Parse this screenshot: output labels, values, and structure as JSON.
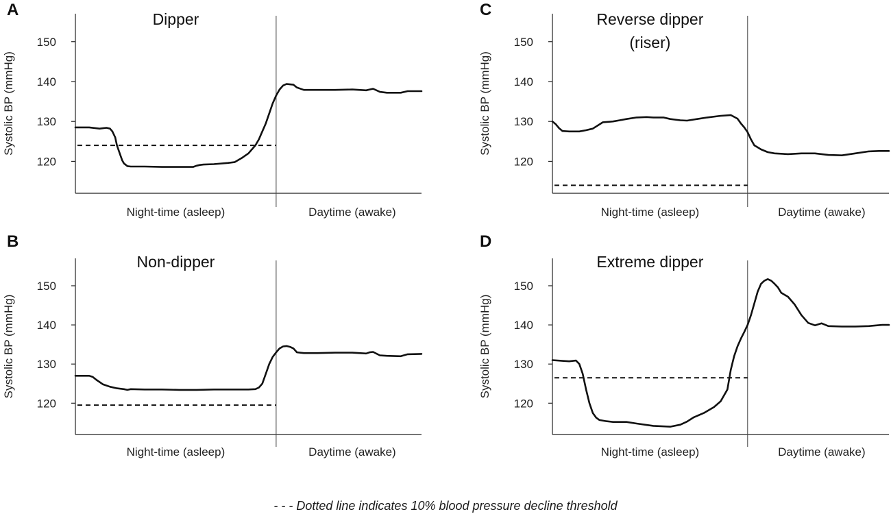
{
  "footnote": "- - - Dotted line indicates 10% blood pressure decline threshold",
  "chart_data": [
    {
      "type": "line",
      "panel": "A",
      "title": "Dipper",
      "ylabel": "Systolic BP (mmHg)",
      "ylim": [
        112,
        157
      ],
      "yticks": [
        120,
        130,
        140,
        150
      ],
      "xlim": [
        0,
        100
      ],
      "period_split": 58,
      "period_labels": [
        "Night-time (asleep)",
        "Daytime (awake)"
      ],
      "threshold": 124,
      "series": [
        {
          "name": "Systolic BP",
          "x": [
            0,
            4,
            7,
            8,
            9,
            10,
            10.7,
            11.5,
            12,
            13,
            13.5,
            14,
            15,
            16,
            20,
            25,
            30,
            34,
            35,
            36,
            37,
            40,
            44,
            46,
            48,
            50,
            52,
            53,
            54,
            55,
            56,
            57,
            58,
            59,
            60,
            61,
            62,
            63,
            64,
            66,
            70,
            75,
            80,
            82,
            84,
            85,
            86,
            88,
            90,
            94,
            96,
            100
          ],
          "y": [
            128.5,
            128.5,
            128.2,
            128.3,
            128.4,
            128.2,
            127.5,
            126,
            124,
            121.5,
            120.3,
            119.5,
            118.8,
            118.7,
            118.7,
            118.6,
            118.6,
            118.6,
            118.9,
            119.1,
            119.2,
            119.3,
            119.6,
            119.8,
            120.8,
            122,
            124,
            125.5,
            127.5,
            129.5,
            132,
            134.5,
            136.5,
            138,
            139,
            139.4,
            139.3,
            139.2,
            138.5,
            137.9,
            137.9,
            137.9,
            138,
            137.9,
            137.8,
            138,
            138.2,
            137.4,
            137.2,
            137.2,
            137.6,
            137.6
          ]
        }
      ]
    },
    {
      "type": "line",
      "panel": "B",
      "title": "Non-dipper",
      "ylabel": "Systolic BP (mmHg)",
      "ylim": [
        112,
        157
      ],
      "yticks": [
        120,
        130,
        140,
        150
      ],
      "xlim": [
        0,
        100
      ],
      "period_split": 58,
      "period_labels": [
        "Night-time (asleep)",
        "Daytime (awake)"
      ],
      "threshold": 119.5,
      "series": [
        {
          "name": "Systolic BP",
          "x": [
            0,
            4,
            5,
            6,
            8,
            10,
            12,
            14,
            15,
            16,
            20,
            25,
            30,
            35,
            40,
            45,
            50,
            52,
            53,
            54,
            55,
            56,
            57,
            58,
            59,
            60,
            61,
            62,
            63,
            64,
            66,
            70,
            75,
            80,
            82,
            84,
            85,
            86,
            88,
            90,
            94,
            96,
            100
          ],
          "y": [
            127,
            127,
            126.7,
            126,
            124.8,
            124.2,
            123.8,
            123.6,
            123.4,
            123.6,
            123.5,
            123.5,
            123.4,
            123.4,
            123.5,
            123.5,
            123.5,
            123.6,
            124,
            125,
            127.5,
            130,
            131.8,
            133,
            134,
            134.5,
            134.6,
            134.4,
            134,
            133,
            132.8,
            132.8,
            132.9,
            132.9,
            132.8,
            132.7,
            133,
            133.1,
            132.2,
            132.1,
            132,
            132.5,
            132.6
          ]
        }
      ]
    },
    {
      "type": "line",
      "panel": "C",
      "title": "Reverse dipper",
      "subtitle": "(riser)",
      "ylabel": "Systolic BP (mmHg)",
      "ylim": [
        112,
        157
      ],
      "yticks": [
        120,
        130,
        140,
        150
      ],
      "xlim": [
        0,
        100
      ],
      "period_split": 58,
      "period_labels": [
        "Night-time (asleep)",
        "Daytime (awake)"
      ],
      "threshold": 114,
      "series": [
        {
          "name": "Systolic BP",
          "x": [
            0,
            1,
            2,
            3,
            5,
            8,
            10,
            12,
            15,
            18,
            20,
            22,
            25,
            28,
            30,
            33,
            35,
            38,
            40,
            43,
            46,
            50,
            53,
            55,
            56,
            57,
            58,
            59,
            60,
            61,
            62,
            64,
            66,
            70,
            74,
            78,
            82,
            86,
            90,
            94,
            97,
            100
          ],
          "y": [
            130,
            129.3,
            128.3,
            127.6,
            127.5,
            127.5,
            127.8,
            128.2,
            129.8,
            130,
            130.3,
            130.6,
            131,
            131.1,
            131,
            131,
            130.6,
            130.3,
            130.2,
            130.6,
            131,
            131.4,
            131.6,
            130.7,
            129.5,
            128.5,
            127.3,
            125.5,
            124,
            123.5,
            123,
            122.3,
            122,
            121.8,
            122,
            122,
            121.6,
            121.5,
            122,
            122.5,
            122.6,
            122.6
          ]
        }
      ]
    },
    {
      "type": "line",
      "panel": "D",
      "title": "Extreme dipper",
      "ylabel": "Systolic BP (mmHg)",
      "ylim": [
        112,
        157
      ],
      "yticks": [
        120,
        130,
        140,
        150
      ],
      "xlim": [
        0,
        100
      ],
      "period_split": 58,
      "period_labels": [
        "Night-time (asleep)",
        "Daytime (awake)"
      ],
      "threshold": 126.5,
      "series": [
        {
          "name": "Systolic BP",
          "x": [
            0,
            3,
            5,
            7,
            8,
            9,
            10,
            11,
            12,
            13,
            14,
            16,
            18,
            22,
            25,
            30,
            35,
            38,
            40,
            42,
            45,
            48,
            50,
            52,
            53,
            54,
            55,
            56,
            57,
            58,
            59,
            60,
            61,
            62,
            63,
            64,
            65,
            66,
            67,
            68,
            70,
            72,
            74,
            76,
            78,
            80,
            82,
            86,
            90,
            94,
            98,
            100
          ],
          "y": [
            131,
            130.8,
            130.7,
            130.9,
            130,
            127.5,
            123.5,
            120,
            117.5,
            116.3,
            115.7,
            115.4,
            115.2,
            115.2,
            114.8,
            114.2,
            114,
            114.5,
            115.3,
            116.4,
            117.5,
            119,
            120.5,
            123.5,
            128.5,
            132,
            134.5,
            136.5,
            138.2,
            140,
            142.5,
            145.5,
            148.5,
            150.5,
            151.3,
            151.7,
            151.3,
            150.5,
            149.6,
            148.2,
            147.2,
            145.2,
            142.5,
            140.5,
            139.9,
            140.4,
            139.7,
            139.6,
            139.6,
            139.7,
            140,
            140
          ]
        }
      ]
    }
  ]
}
